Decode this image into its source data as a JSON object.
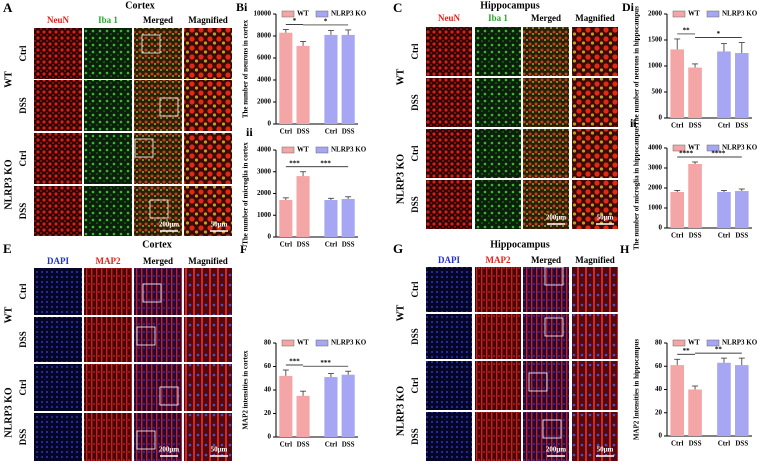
{
  "panels": [
    {
      "letter": "A",
      "title": "Cortex",
      "columns": [
        {
          "text": "NeuN",
          "color": "#e8201a"
        },
        {
          "text": "Iba 1",
          "color": "#2aa52a"
        },
        {
          "text": "Merged",
          "color": "#000000"
        },
        {
          "text": "Magnified",
          "color": "#000000"
        }
      ],
      "groups": [
        {
          "name": "WT",
          "rows": [
            "Ctrl",
            "DSS"
          ]
        },
        {
          "name": "NLRP3 KO",
          "rows": [
            "Ctrl",
            "DSS"
          ]
        }
      ],
      "scale_bars": [
        "200μm",
        "50μm"
      ]
    },
    {
      "letter": "C",
      "title": "Hippocampus",
      "columns": [
        {
          "text": "NeuN",
          "color": "#e8201a"
        },
        {
          "text": "Iba 1",
          "color": "#2aa52a"
        },
        {
          "text": "Merged",
          "color": "#000000"
        },
        {
          "text": "Magnified",
          "color": "#000000"
        }
      ],
      "groups": [
        {
          "name": "WT",
          "rows": [
            "Ctrl",
            "DSS"
          ]
        },
        {
          "name": "NLRP3 KO",
          "rows": [
            "Ctrl",
            "DSS"
          ]
        }
      ],
      "scale_bars": [
        "200μm",
        "50μm"
      ]
    },
    {
      "letter": "E",
      "title": "Cortex",
      "columns": [
        {
          "text": "DAPI",
          "color": "#2030d0"
        },
        {
          "text": "MAP2",
          "color": "#e8201a"
        },
        {
          "text": "Merged",
          "color": "#000000"
        },
        {
          "text": "Magnified",
          "color": "#000000"
        }
      ],
      "groups": [
        {
          "name": "WT",
          "rows": [
            "Ctrl",
            "DSS"
          ]
        },
        {
          "name": "NLRP3 KO",
          "rows": [
            "Ctrl",
            "DSS"
          ]
        }
      ],
      "scale_bars": [
        "200μm",
        "50μm"
      ]
    },
    {
      "letter": "G",
      "title": "Hippocampus",
      "columns": [
        {
          "text": "DAPI",
          "color": "#2030d0"
        },
        {
          "text": "MAP2",
          "color": "#e8201a"
        },
        {
          "text": "Merged",
          "color": "#000000"
        },
        {
          "text": "Magnified",
          "color": "#000000"
        }
      ],
      "groups": [
        {
          "name": "WT",
          "rows": [
            "Ctrl",
            "DSS"
          ]
        },
        {
          "name": "NLRP3 KO",
          "rows": [
            "Ctrl",
            "DSS"
          ]
        }
      ],
      "scale_bars": [
        "200μm",
        "50μm"
      ]
    }
  ],
  "chart_data": [
    {
      "type": "bar",
      "panel": "Bi",
      "y_label": "The number of neurons in cortex",
      "categories": [
        "Ctrl",
        "DSS"
      ],
      "ylim": [
        0,
        10000
      ],
      "yticks": [
        0,
        2000,
        4000,
        6000,
        8000,
        10000
      ],
      "series": [
        {
          "name": "WT",
          "color": "#f4a5a5",
          "values": [
            8300,
            7100
          ],
          "errors": [
            300,
            400
          ]
        },
        {
          "name": "NLRP3 KO",
          "color": "#a6a6f2",
          "values": [
            8100,
            8100
          ],
          "errors": [
            400,
            450
          ]
        }
      ],
      "annotations": [
        "*",
        "*"
      ]
    },
    {
      "type": "bar",
      "panel": "ii",
      "y_label": "The number of microglia in cortex",
      "categories": [
        "Ctrl",
        "DSS"
      ],
      "ylim": [
        0,
        4000
      ],
      "yticks": [
        0,
        1000,
        2000,
        3000,
        4000
      ],
      "series": [
        {
          "name": "WT",
          "color": "#f4a5a5",
          "values": [
            1700,
            2800
          ],
          "errors": [
            100,
            200
          ]
        },
        {
          "name": "NLRP3 KO",
          "color": "#a6a6f2",
          "values": [
            1700,
            1750
          ],
          "errors": [
            80,
            100
          ]
        }
      ],
      "annotations": [
        "***",
        "***"
      ]
    },
    {
      "type": "bar",
      "panel": "Di",
      "y_label": "The number of neurons in hippocampus",
      "categories": [
        "Ctrl",
        "DSS"
      ],
      "ylim": [
        0,
        2000
      ],
      "yticks": [
        0,
        500,
        1000,
        1500,
        2000
      ],
      "series": [
        {
          "name": "WT",
          "color": "#f4a5a5",
          "values": [
            1320,
            970
          ],
          "errors": [
            200,
            70
          ]
        },
        {
          "name": "NLRP3 KO",
          "color": "#a6a6f2",
          "values": [
            1280,
            1250
          ],
          "errors": [
            150,
            200
          ]
        }
      ],
      "annotations": [
        "**",
        "*"
      ]
    },
    {
      "type": "bar",
      "panel": "ii",
      "y_label": "The number of microglia in hippocampus",
      "categories": [
        "Ctrl",
        "DSS"
      ],
      "ylim": [
        0,
        4000
      ],
      "yticks": [
        0,
        1000,
        2000,
        3000,
        4000
      ],
      "series": [
        {
          "name": "WT",
          "color": "#f4a5a5",
          "values": [
            1800,
            3200
          ],
          "errors": [
            80,
            100
          ]
        },
        {
          "name": "NLRP3 KO",
          "color": "#a6a6f2",
          "values": [
            1800,
            1850
          ],
          "errors": [
            80,
            100
          ]
        }
      ],
      "annotations": [
        "****",
        "****"
      ]
    },
    {
      "type": "bar",
      "panel": "F",
      "y_label": "MAP2 intensities in cortex",
      "categories": [
        "Ctrl",
        "DSS"
      ],
      "ylim": [
        0,
        80
      ],
      "yticks": [
        0,
        20,
        40,
        60,
        80
      ],
      "series": [
        {
          "name": "WT",
          "color": "#f4a5a5",
          "values": [
            52,
            35
          ],
          "errors": [
            5,
            4
          ]
        },
        {
          "name": "NLRP3 KO",
          "color": "#a6a6f2",
          "values": [
            51,
            53
          ],
          "errors": [
            3,
            3
          ]
        }
      ],
      "annotations": [
        "***",
        "***"
      ]
    },
    {
      "type": "bar",
      "panel": "H",
      "y_label": "MAP2 Intensities in hippocampus",
      "categories": [
        "Ctrl",
        "DSS"
      ],
      "ylim": [
        0,
        80
      ],
      "yticks": [
        0,
        20,
        40,
        60,
        80
      ],
      "series": [
        {
          "name": "WT",
          "color": "#f4a5a5",
          "values": [
            61,
            40
          ],
          "errors": [
            5,
            3
          ]
        },
        {
          "name": "NLRP3 KO",
          "color": "#a6a6f2",
          "values": [
            63,
            61
          ],
          "errors": [
            4,
            6
          ]
        }
      ],
      "annotations": [
        "**",
        "**"
      ]
    }
  ]
}
